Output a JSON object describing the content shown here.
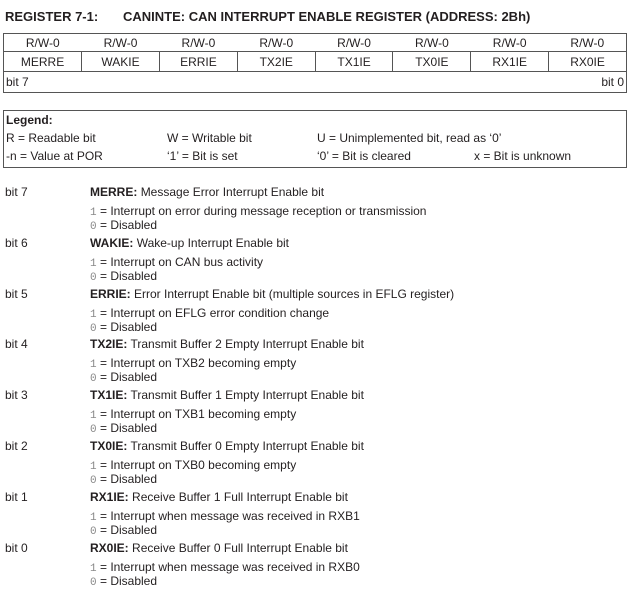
{
  "title": {
    "label": "REGISTER 7-1:",
    "name": "CANINTE: CAN INTERRUPT ENABLE REGISTER (ADDRESS: 2Bh)"
  },
  "register": {
    "access": [
      "R/W-0",
      "R/W-0",
      "R/W-0",
      "R/W-0",
      "R/W-0",
      "R/W-0",
      "R/W-0",
      "R/W-0"
    ],
    "names": [
      "MERRE",
      "WAKIE",
      "ERRIE",
      "TX2IE",
      "TX1IE",
      "TX0IE",
      "RX1IE",
      "RX0IE"
    ],
    "msb": "bit 7",
    "lsb": "bit 0"
  },
  "legend": {
    "title": "Legend:",
    "items": [
      "R = Readable bit",
      "W = Writable bit",
      "U = Unimplemented bit, read as ‘0’",
      "-n = Value at POR",
      "‘1’ = Bit is set",
      "‘0’ = Bit is cleared",
      "x = Bit is unknown"
    ]
  },
  "bits": [
    {
      "bit": "bit 7",
      "name": "MERRE:",
      "desc": "Message Error Interrupt Enable bit",
      "one": "Interrupt on error during message reception or transmission",
      "zero": "Disabled"
    },
    {
      "bit": "bit 6",
      "name": "WAKIE:",
      "desc": "Wake-up Interrupt Enable bit",
      "one": "Interrupt on CAN bus activity",
      "zero": "Disabled"
    },
    {
      "bit": "bit 5",
      "name": "ERRIE:",
      "desc": "Error Interrupt Enable bit (multiple sources in EFLG register)",
      "one": "Interrupt on EFLG error condition change",
      "zero": "Disabled"
    },
    {
      "bit": "bit 4",
      "name": "TX2IE:",
      "desc": "Transmit Buffer 2 Empty Interrupt Enable bit",
      "one": "Interrupt on TXB2 becoming empty",
      "zero": "Disabled"
    },
    {
      "bit": "bit 3",
      "name": "TX1IE:",
      "desc": "Transmit Buffer 1 Empty Interrupt Enable bit",
      "one": "Interrupt on TXB1 becoming empty",
      "zero": "Disabled"
    },
    {
      "bit": "bit 2",
      "name": "TX0IE:",
      "desc": "Transmit Buffer 0 Empty Interrupt Enable bit",
      "one": "Interrupt on TXB0 becoming empty",
      "zero": "Disabled"
    },
    {
      "bit": "bit 1",
      "name": "RX1IE:",
      "desc": "Receive Buffer 1 Full Interrupt Enable bit",
      "one": "Interrupt when message was received in RXB1",
      "zero": "Disabled"
    },
    {
      "bit": "bit 0",
      "name": "RX0IE:",
      "desc": "Receive Buffer 0 Full Interrupt Enable bit",
      "one": "Interrupt when message was received in RXB0",
      "zero": "Disabled"
    }
  ],
  "values": {
    "one": "1",
    "zero": "0",
    "eq": "="
  }
}
